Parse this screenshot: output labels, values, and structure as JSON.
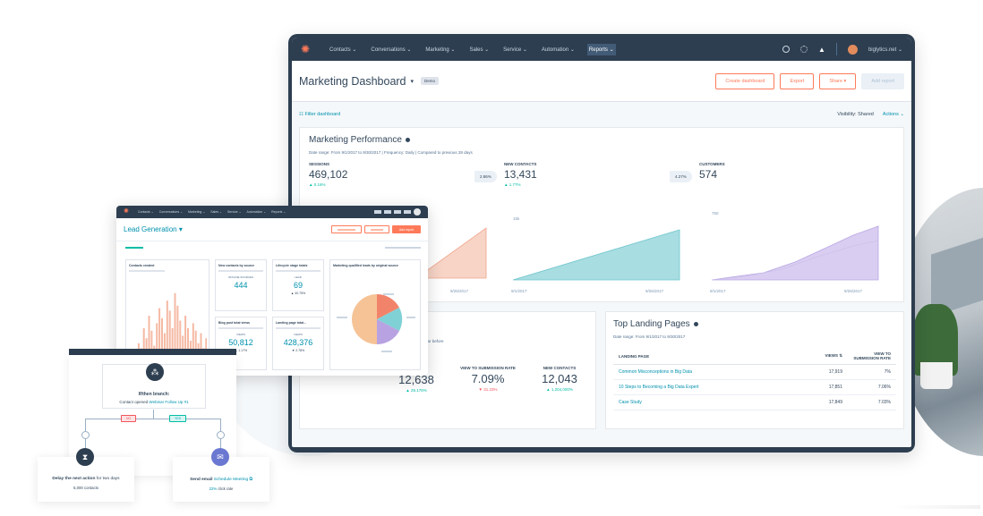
{
  "main": {
    "nav": {
      "items": [
        "Contacts ⌄",
        "Conversations ⌄",
        "Marketing ⌄",
        "Sales ⌄",
        "Service ⌄",
        "Automation ⌄",
        "Reports ⌄"
      ],
      "account": "biglytics.net ⌄"
    },
    "header": {
      "title": "Marketing Dashboard",
      "caret": "▾",
      "badge": "Demo",
      "buttons": {
        "create": "Create dashboard",
        "export": "Export",
        "share": "Share ▾",
        "add": "Add report"
      }
    },
    "filterbar": {
      "filter": "☷  Filter dashboard",
      "visibility": "Visibility:  Shared",
      "actions": "Actions ⌄"
    },
    "performance": {
      "title": "Marketing Performance",
      "meta": "Date range:  From 9/1/2017 to 9/30/2017   |   Frequency:  Daily   |   Compared to previous 28 days",
      "kpis": [
        {
          "label": "SESSIONS",
          "value": "469,102",
          "change": "▲ 0.16%"
        },
        {
          "label": "NEW CONTACTS",
          "value": "13,431",
          "change": "▲ 1.77%"
        },
        {
          "label": "CUSTOMERS",
          "value": "574",
          "change": ""
        }
      ],
      "pills": [
        "2.86%",
        "4.27%"
      ],
      "charts": {
        "y_labels": [
          "15k",
          "750"
        ],
        "x_labels": [
          "9/26/2017",
          "9/1/2017",
          "9/26/2017",
          "9/1/2017",
          "9/26/2017"
        ]
      }
    },
    "conversion": {
      "partial_text": "ear before",
      "stats": [
        {
          "label": "",
          "value": "12,638",
          "change": "▲ 25.176%"
        },
        {
          "label": "VIEW TO SUBMISSION RATE",
          "value": "7.09%",
          "change": "▼ 31.23%"
        },
        {
          "label": "NEW CONTACTS",
          "value": "12,043",
          "change": "▲ 1,204,000%"
        }
      ]
    },
    "landing": {
      "title": "Top Landing Pages",
      "meta": "Date range:  From 9/1/2017 to 9/30/2017",
      "columns": {
        "page": "LANDING PAGE",
        "views": "VIEWS ⇅",
        "rate": "VIEW TO SUBMISSION RATE"
      },
      "rows": [
        {
          "page": "Common Misconceptions in Big Data",
          "views": "17,919",
          "rate": "7%"
        },
        {
          "page": "10 Steps to Becoming a Big Data Expert",
          "views": "17,851",
          "rate": "7.06%"
        },
        {
          "page": "Case Study",
          "views": "17,849",
          "rate": "7.03%"
        }
      ]
    }
  },
  "lead": {
    "nav": [
      "Contacts ⌄",
      "Conversations ⌄",
      "Marketing ⌄",
      "Sales ⌄",
      "Service ⌄",
      "Automation ⌄",
      "Reports ⌄"
    ],
    "title": "Lead Generation ▾",
    "add_report": "Add report",
    "cards": {
      "contacts_created": "Contacts created",
      "new_contacts": {
        "title": "New contacts by source",
        "sub": "OFFLINE SOURCES",
        "value": "444"
      },
      "lifecycle": {
        "title": "Lifecycle stage totals",
        "sub": "LEAD",
        "value": "69",
        "change": "▲ 40.75%"
      },
      "mql": "Marketing qualified leads by original source",
      "blog": {
        "title": "Blog post total views",
        "sub": "VIEWS",
        "value": "50,812",
        "change": "▲ 1.17%"
      },
      "landing": {
        "title": "Landing page total...",
        "sub": "VIEWS",
        "value": "428,376",
        "change": "▼ 2.78%"
      }
    }
  },
  "workflow": {
    "ifthen": {
      "title": "If/then branch:",
      "sub_prefix": "Contact opened ",
      "sub_link": "Webinar Follow Up #1"
    },
    "tags": {
      "no": "NO",
      "yes": "YES"
    },
    "delay": {
      "bold": "Delay the next action",
      "normal": " for two days",
      "sub": "5,000 contacts"
    },
    "email": {
      "bold": "Send email ",
      "link": "Schedule Meeting ⧉",
      "sub_link": "22%",
      "sub": " click rate"
    }
  },
  "colors": {
    "navy": "#2d3e50",
    "orange": "#ff7a59",
    "teal": "#0091ae",
    "green": "#00bda5",
    "salmon": "#f2c6b5",
    "aqua": "#8fd3d8",
    "lavender": "#cbbde8"
  },
  "icons": [
    "hubspot-logo-icon",
    "search-icon",
    "gear-icon",
    "bell-icon",
    "branch-icon",
    "hourglass-icon",
    "email-icon",
    "info-icon"
  ]
}
